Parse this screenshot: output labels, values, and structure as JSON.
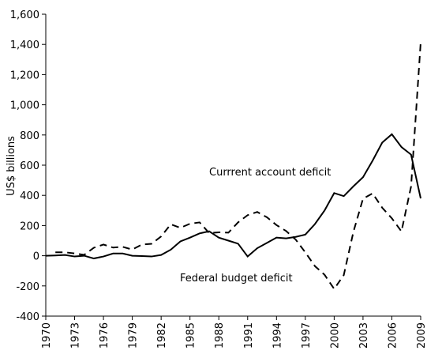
{
  "chart_data": {
    "type": "line",
    "y_label": "US$ billions",
    "annotations": [
      "Currrent account deficit",
      "Federal budget deficit"
    ],
    "x": [
      1970,
      1971,
      1972,
      1973,
      1974,
      1975,
      1976,
      1977,
      1978,
      1979,
      1980,
      1981,
      1982,
      1983,
      1984,
      1985,
      1986,
      1987,
      1988,
      1989,
      1990,
      1991,
      1992,
      1993,
      1994,
      1995,
      1996,
      1997,
      1998,
      1999,
      2000,
      2001,
      2002,
      2003,
      2004,
      2005,
      2006,
      2007,
      2008,
      2009
    ],
    "series": [
      {
        "name": "Currrent account deficit",
        "color": "#000000",
        "dash": "solid",
        "values": [
          0,
          2,
          5,
          -5,
          0,
          -18,
          -5,
          15,
          15,
          0,
          -2,
          -5,
          5,
          40,
          95,
          120,
          148,
          162,
          120,
          100,
          80,
          -5,
          50,
          85,
          120,
          115,
          125,
          140,
          210,
          300,
          415,
          395,
          460,
          520,
          630,
          750,
          805,
          720,
          670,
          380
        ]
      },
      {
        "name": "Federal budget deficit",
        "color": "#000000",
        "dash": "dashed",
        "values": [
          null,
          23,
          23,
          15,
          6,
          53,
          74,
          54,
          59,
          41,
          74,
          79,
          128,
          208,
          185,
          212,
          221,
          150,
          155,
          153,
          221,
          269,
          290,
          255,
          203,
          164,
          107,
          22,
          -69,
          -126,
          -220,
          -128,
          158,
          378,
          413,
          318,
          248,
          161,
          459,
          1413
        ]
      }
    ],
    "xlim": [
      1970,
      2009
    ],
    "xticks": [
      1970,
      1973,
      1976,
      1979,
      1982,
      1985,
      1988,
      1991,
      1994,
      1997,
      2000,
      2003,
      2006,
      2009
    ],
    "ylim": [
      -400,
      1600
    ],
    "yticks": [
      -400,
      -200,
      0,
      200,
      400,
      600,
      800,
      {
        "value": 1000,
        "label": "1,000"
      },
      {
        "value": 1200,
        "label": "1,200"
      },
      {
        "value": 1400,
        "label": "1,400"
      },
      {
        "value": 1600,
        "label": "1,600"
      }
    ],
    "grid": false
  }
}
